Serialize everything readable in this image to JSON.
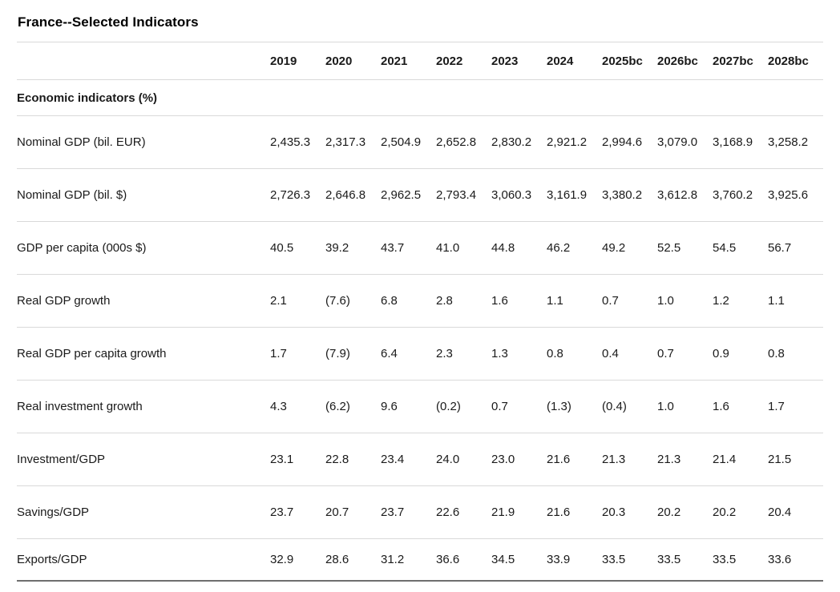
{
  "chart_data": {
    "type": "table",
    "title": "France--Selected Indicators",
    "section": "Economic indicators (%)",
    "columns": [
      "2019",
      "2020",
      "2021",
      "2022",
      "2023",
      "2024",
      "2025bc",
      "2026bc",
      "2027bc",
      "2028bc"
    ],
    "rows": [
      {
        "label": "Nominal GDP (bil. EUR)",
        "values": [
          "2,435.3",
          "2,317.3",
          "2,504.9",
          "2,652.8",
          "2,830.2",
          "2,921.2",
          "2,994.6",
          "3,079.0",
          "3,168.9",
          "3,258.2"
        ]
      },
      {
        "label": "Nominal GDP (bil. $)",
        "values": [
          "2,726.3",
          "2,646.8",
          "2,962.5",
          "2,793.4",
          "3,060.3",
          "3,161.9",
          "3,380.2",
          "3,612.8",
          "3,760.2",
          "3,925.6"
        ]
      },
      {
        "label": "GDP per capita (000s $)",
        "values": [
          "40.5",
          "39.2",
          "43.7",
          "41.0",
          "44.8",
          "46.2",
          "49.2",
          "52.5",
          "54.5",
          "56.7"
        ]
      },
      {
        "label": "Real GDP growth",
        "values": [
          "2.1",
          "(7.6)",
          "6.8",
          "2.8",
          "1.6",
          "1.1",
          "0.7",
          "1.0",
          "1.2",
          "1.1"
        ]
      },
      {
        "label": "Real GDP per capita growth",
        "values": [
          "1.7",
          "(7.9)",
          "6.4",
          "2.3",
          "1.3",
          "0.8",
          "0.4",
          "0.7",
          "0.9",
          "0.8"
        ]
      },
      {
        "label": "Real investment growth",
        "values": [
          "4.3",
          "(6.2)",
          "9.6",
          "(0.2)",
          "0.7",
          "(1.3)",
          "(0.4)",
          "1.0",
          "1.6",
          "1.7"
        ]
      },
      {
        "label": "Investment/GDP",
        "values": [
          "23.1",
          "22.8",
          "23.4",
          "24.0",
          "23.0",
          "21.6",
          "21.3",
          "21.3",
          "21.4",
          "21.5"
        ]
      },
      {
        "label": "Savings/GDP",
        "values": [
          "23.7",
          "20.7",
          "23.7",
          "22.6",
          "21.9",
          "21.6",
          "20.3",
          "20.2",
          "20.2",
          "20.4"
        ]
      },
      {
        "label": "Exports/GDP",
        "values": [
          "32.9",
          "28.6",
          "31.2",
          "36.6",
          "34.5",
          "33.9",
          "33.5",
          "33.5",
          "33.5",
          "33.6"
        ]
      }
    ],
    "layout": {
      "grid": "horizontal-row-separators",
      "legend_position": "none"
    },
    "colors": {
      "background": "#ffffff",
      "text": "#1a1a1a",
      "title_text": "#000000",
      "row_divider": "#d9d9d9",
      "bottom_border": "#6e6e6e"
    }
  }
}
